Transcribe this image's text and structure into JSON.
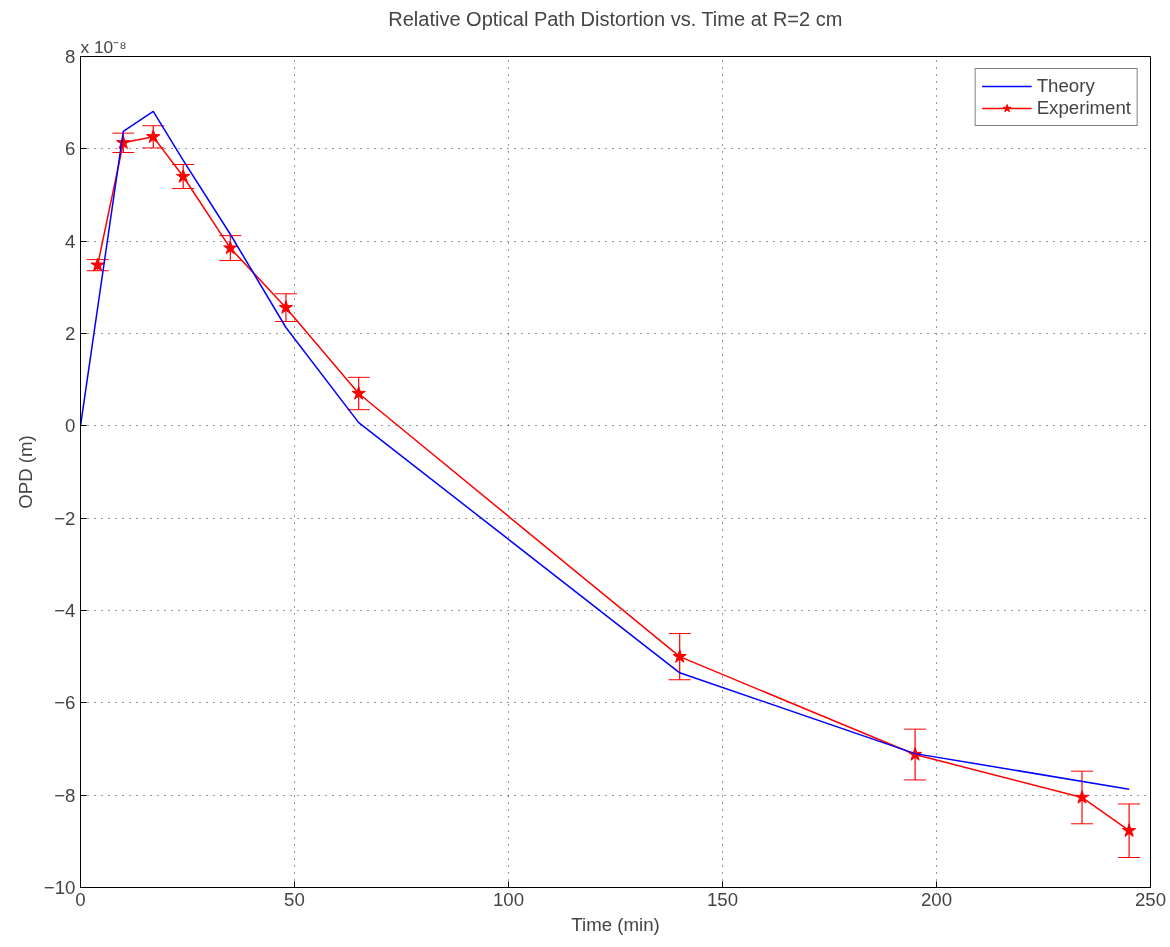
{
  "chart_data": {
    "type": "line",
    "title": "Relative Optical Path Distortion vs. Time at R=2 cm",
    "xlabel": "Time (min)",
    "ylabel": "OPD (m)",
    "annotations": [
      "x 10⁻⁸"
    ],
    "xlim": [
      0,
      250
    ],
    "xticks": [
      0,
      50,
      100,
      150,
      200,
      250
    ],
    "ylim": [
      -10,
      8
    ],
    "yticks": [
      -10,
      -8,
      -6,
      -4,
      -2,
      0,
      2,
      4,
      6,
      8
    ],
    "grid": true,
    "legend": "top right",
    "series": [
      {
        "name": "Theory",
        "color": "#0000ff",
        "marker": "none",
        "x": [
          0,
          10,
          17,
          24,
          35,
          48,
          65,
          140,
          195,
          245
        ],
        "values": [
          0,
          6.38,
          6.81,
          5.75,
          4.15,
          2.13,
          0.07,
          -5.35,
          -7.1,
          -7.87
        ]
      },
      {
        "name": "Experiment",
        "color": "#ff0000",
        "marker": "star",
        "x": [
          4,
          10,
          17,
          24,
          35,
          48,
          65,
          140,
          195,
          234,
          245
        ],
        "values": [
          3.48,
          6.13,
          6.26,
          5.4,
          3.85,
          2.56,
          0.7,
          -5.0,
          -7.12,
          -8.05,
          -8.77
        ],
        "errors": [
          0.12,
          0.21,
          0.24,
          0.26,
          0.27,
          0.3,
          0.35,
          0.5,
          0.55,
          0.57,
          0.58
        ]
      }
    ]
  }
}
